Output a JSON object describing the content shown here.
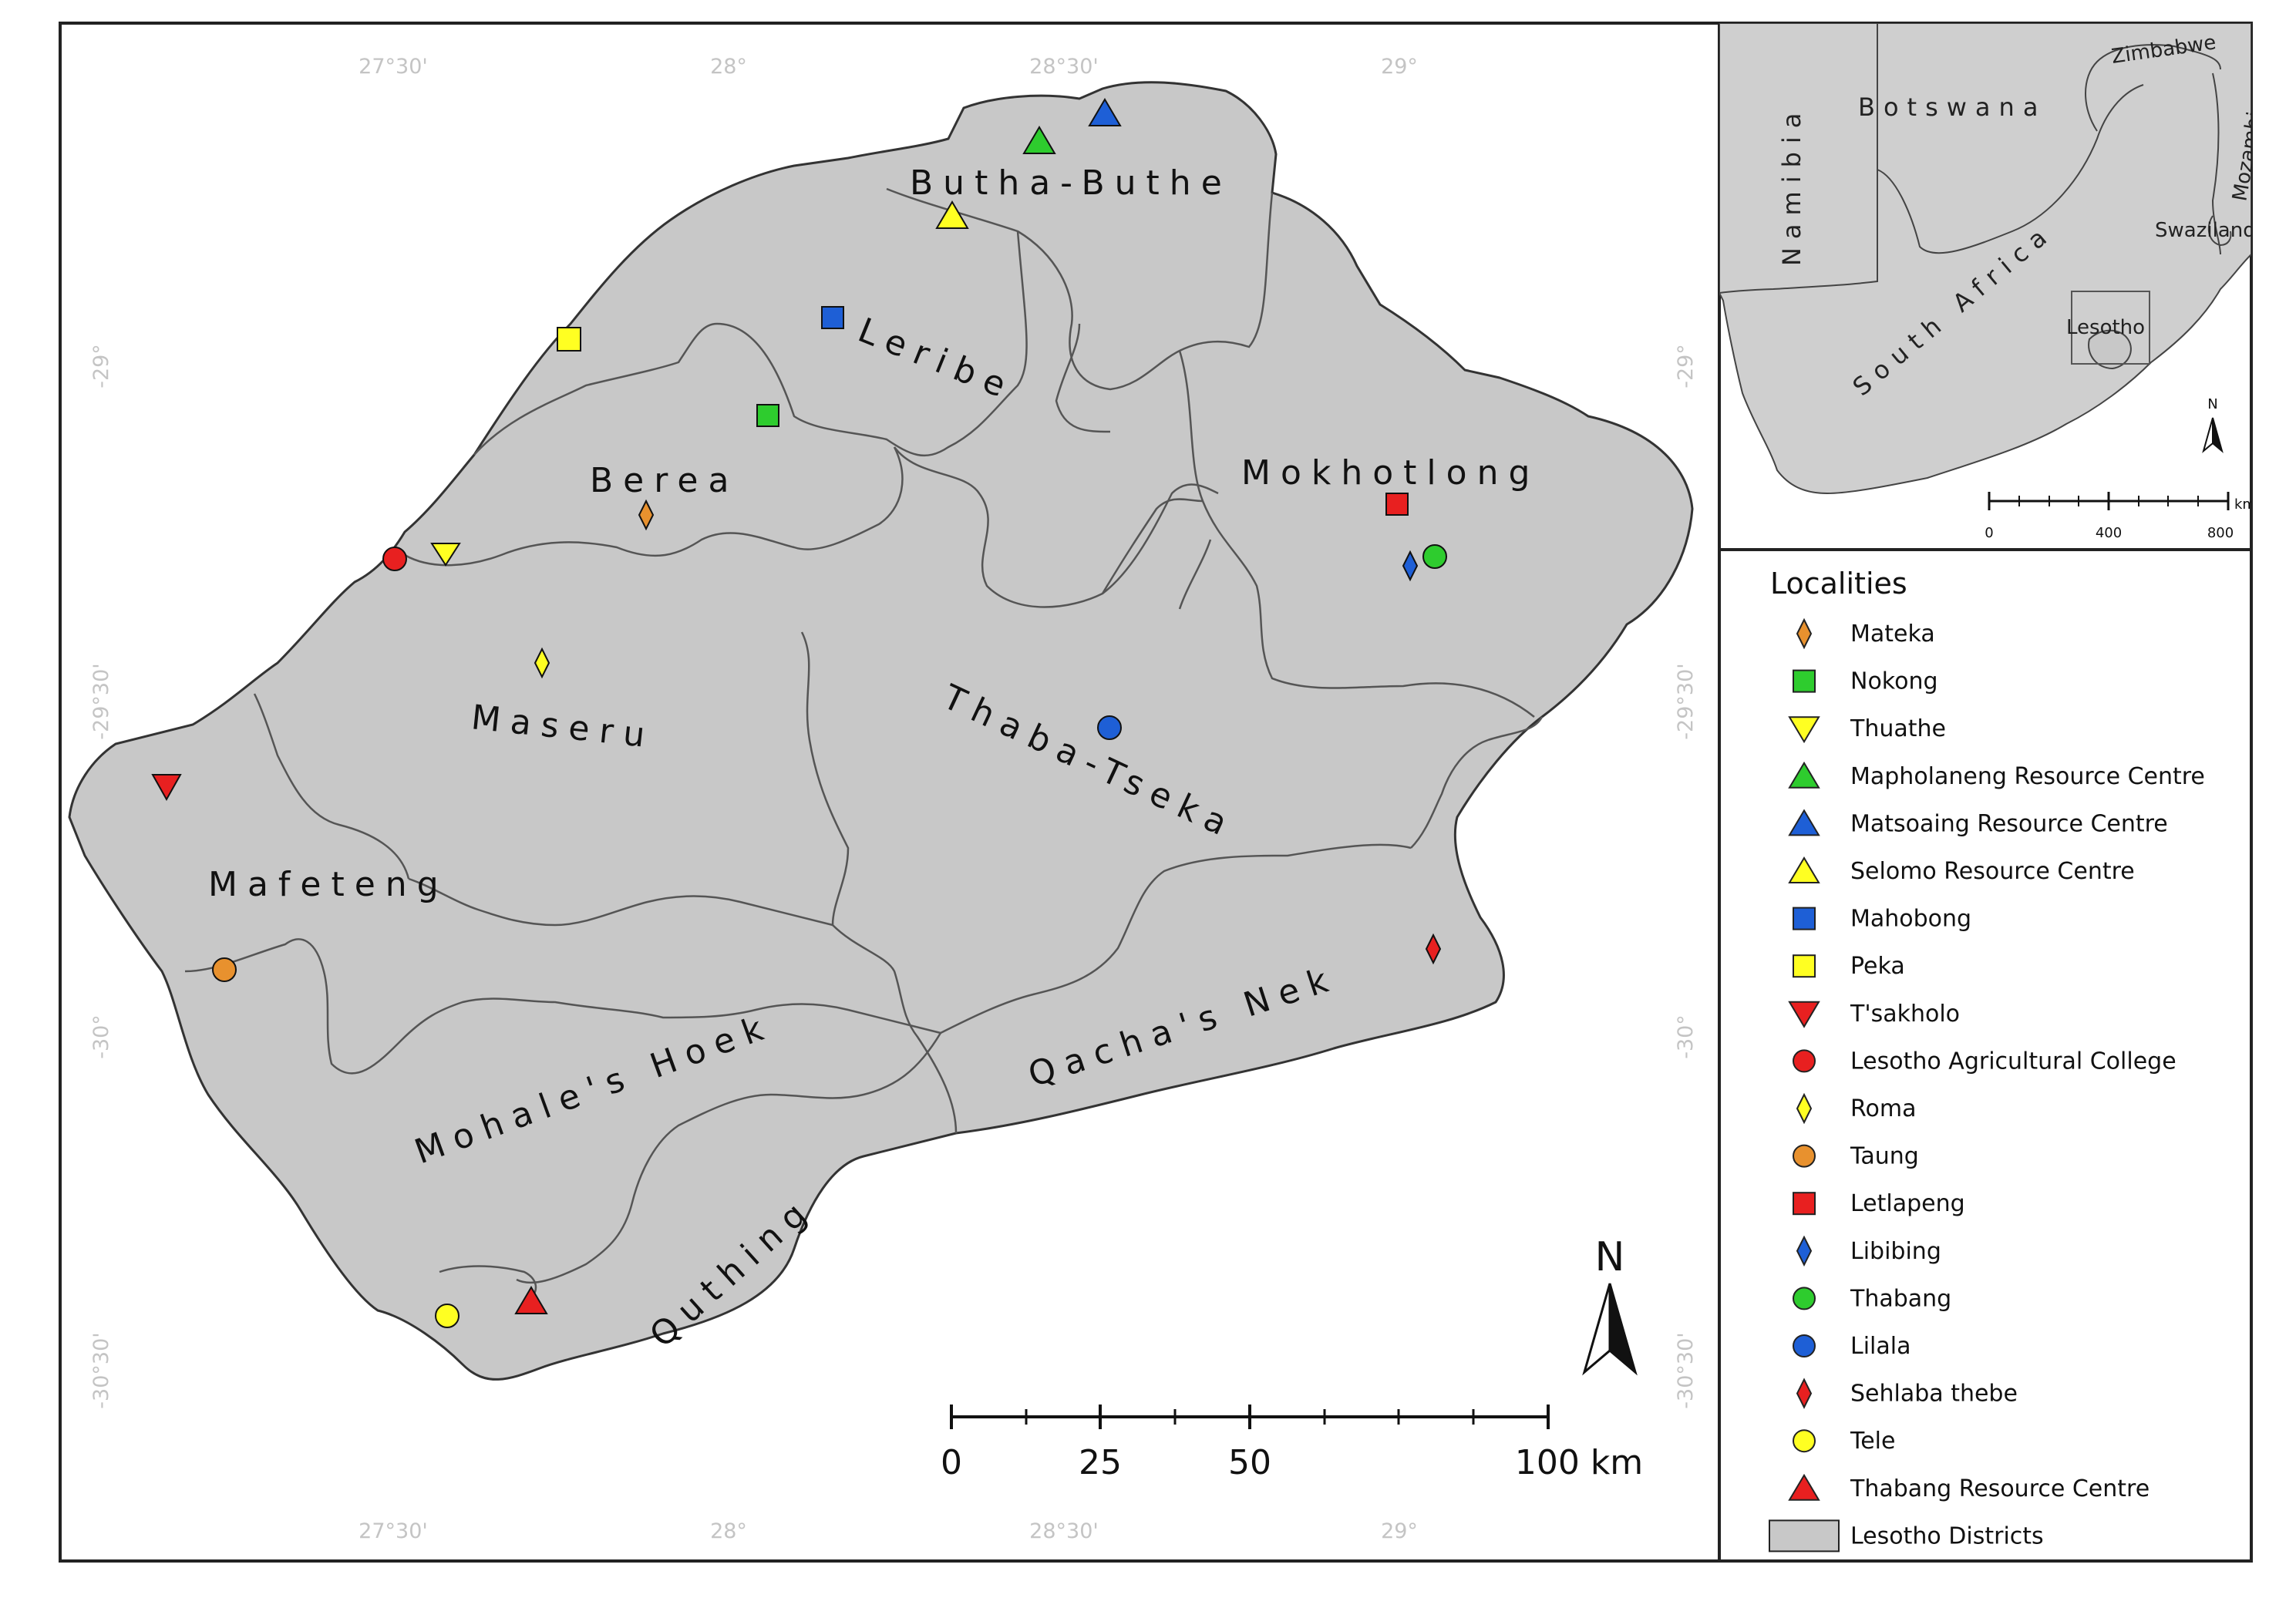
{
  "ticks": {
    "lon_27_30": "27°30'",
    "lon_28": "28°",
    "lon_28_30": "28°30'",
    "lon_29": "29°",
    "lat_29": "-29°",
    "lat_29_30": "-29°30'",
    "lat_30": "-30°",
    "lat_30_30": "-30°30'"
  },
  "districts": {
    "butha_buthe": "Butha-Buthe",
    "leribe": "Leribe",
    "berea": "Berea",
    "mokhotlong": "Mokhotlong",
    "maseru": "Maseru",
    "thaba_tseka": "Thaba-Tseka",
    "mafeteng": "Mafeteng",
    "mohales_hoek": "Mohale's Hoek",
    "qachas_nek": "Qacha's Nek",
    "quthing": "Quthing"
  },
  "inset": {
    "namibia": "Namibia",
    "botswana": "Botswana",
    "zimbabwe": "Zimbabwe",
    "mozambique": "Mozambique",
    "swaziland": "Swaziland",
    "south_africa": "South Africa",
    "lesotho": "Lesotho",
    "north": "N",
    "scale_unit": "km",
    "scale": [
      "0",
      "400",
      "800"
    ]
  },
  "scale_bar": {
    "labels": [
      "0",
      "25",
      "50",
      "100 km"
    ]
  },
  "north_arrow": "N",
  "legend": {
    "title": "Localities",
    "items": [
      {
        "label": "Mateka",
        "shape": "diamond",
        "color": "#e8912e"
      },
      {
        "label": "Nokong",
        "shape": "square",
        "color": "#2ecc2e"
      },
      {
        "label": "Thuathe",
        "shape": "triangle-down",
        "color": "#ffff22"
      },
      {
        "label": "Mapholaneng Resource Centre",
        "shape": "triangle",
        "color": "#2ecc2e"
      },
      {
        "label": "Matsoaing Resource Centre",
        "shape": "triangle",
        "color": "#1e5fd6"
      },
      {
        "label": "Selomo Resource Centre",
        "shape": "triangle",
        "color": "#ffff22"
      },
      {
        "label": "Mahobong",
        "shape": "square",
        "color": "#1e5fd6"
      },
      {
        "label": "Peka",
        "shape": "square",
        "color": "#ffff22"
      },
      {
        "label": "T'sakholo",
        "shape": "triangle-down",
        "color": "#e82020"
      },
      {
        "label": "Lesotho Agricultural College",
        "shape": "circle",
        "color": "#e82020"
      },
      {
        "label": "Roma",
        "shape": "diamond",
        "color": "#ffff22"
      },
      {
        "label": "Taung",
        "shape": "circle",
        "color": "#e8912e"
      },
      {
        "label": "Letlapeng",
        "shape": "square",
        "color": "#e82020"
      },
      {
        "label": "Libibing",
        "shape": "diamond",
        "color": "#1e5fd6"
      },
      {
        "label": "Thabang",
        "shape": "circle",
        "color": "#2ecc2e"
      },
      {
        "label": "Lilala",
        "shape": "circle",
        "color": "#1e5fd6"
      },
      {
        "label": "Sehlaba thebe",
        "shape": "diamond",
        "color": "#e82020"
      },
      {
        "label": "Tele",
        "shape": "circle",
        "color": "#ffff22"
      },
      {
        "label": "Thabang Resource Centre",
        "shape": "triangle",
        "color": "#e82020"
      },
      {
        "label": "Lesotho Districts",
        "shape": "rect",
        "color": "#c8c8c8"
      }
    ]
  },
  "colors": {
    "district_fill": "#c8c8c8",
    "boundary": "#555555",
    "inset_land": "#cfcfcf"
  }
}
